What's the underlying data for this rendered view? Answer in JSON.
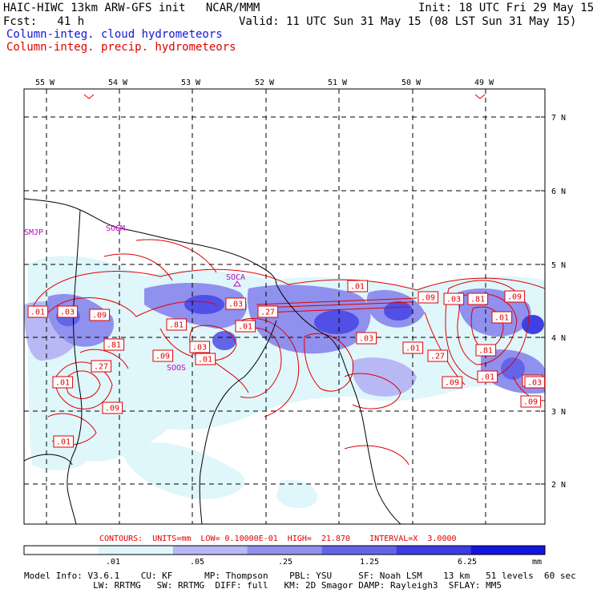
{
  "header": {
    "title_left": "HAIC-HIWC 13km ARW-GFS init   NCAR/MMM",
    "init": "Init: 18 UTC Fri 29 May 15",
    "fcst": "Fcst:   41 h",
    "valid": "Valid: 11 UTC Sun 31 May 15 (08 LST Sun 31 May 15)",
    "field_cloud": "Column-integ. cloud hydrometeors",
    "field_precip": "Column-integ. precip. hydrometeors"
  },
  "map": {
    "lon_labels": [
      "55 W",
      "54 W",
      "53 W",
      "52 W",
      "51 W",
      "50 W",
      "49 W"
    ],
    "lat_labels": [
      "7 N",
      "6 N",
      "5 N",
      "4 N",
      "3 N",
      "2 N"
    ],
    "stations": [
      "SMJP",
      "SOGM",
      "SOCA",
      "SOOS"
    ],
    "contour_labels": [
      ".01",
      ".03",
      ".09",
      ".81",
      ".27",
      ".01",
      ".09",
      ".03",
      ".09",
      ".01",
      ".81",
      ".03",
      ".27",
      ".01",
      ".01",
      ".03",
      ".01",
      ".09",
      ".27",
      ".03",
      ".81",
      ".09",
      ".01",
      ".03",
      ".09",
      ".01",
      ".81",
      ".01",
      ".09",
      ".03"
    ]
  },
  "contour_info": "CONTOURS:  UNITS=mm  LOW= 0.10000E-01  HIGH=  21.870    INTERVAL=X  3.0000",
  "colorbar": {
    "ticks": [
      ".01",
      ".05",
      ".25",
      "1.25",
      "6.25"
    ],
    "unit": "mm",
    "colors": [
      "#ffffff",
      "#dff6fa",
      "#b8b8f4",
      "#9090ee",
      "#6464e8",
      "#3c3ce4",
      "#1414e0"
    ]
  },
  "footer": {
    "line1": "Model Info: V3.6.1    CU: KF      MP: Thompson    PBL: YSU     SF: Noah LSM    13 km   51 levels  60 sec",
    "line2": "             LW: RRTMG   SW: RRTMG  DIFF: full   KM: 2D Smagor DAMP: Rayleigh3  SFLAY: MM5"
  }
}
